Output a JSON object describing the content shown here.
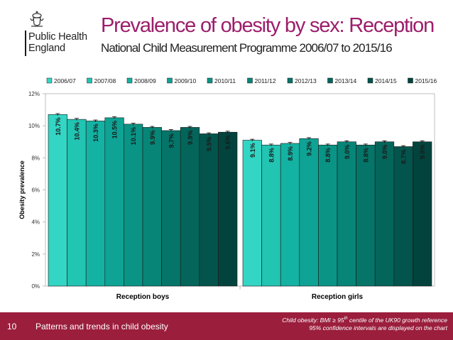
{
  "logo": {
    "line1": "Public Health",
    "line2": "England"
  },
  "title": "Prevalence of obesity by sex: Reception",
  "subtitle": "National Child Measurement Programme 2006/07 to 2015/16",
  "footer": {
    "page_number": "10",
    "title": "Patterns and trends in child obesity",
    "note_prefix": "Child obesity: BMI ≥ 95",
    "note_sup": "th",
    "note_suffix": " centile of the UK90 growth reference",
    "note_line2": "95% confidence intervals are displayed on the chart"
  },
  "chart_data": {
    "type": "bar",
    "categories": [
      "Reception boys",
      "Reception girls"
    ],
    "series": [
      {
        "name": "2006/07",
        "values": [
          10.7,
          9.1
        ],
        "labels": [
          "10.7%",
          "9.1%"
        ],
        "color": "#33d6c4"
      },
      {
        "name": "2007/08",
        "values": [
          10.4,
          8.8
        ],
        "labels": [
          "10.4%",
          "8.8%"
        ],
        "color": "#22c4b2"
      },
      {
        "name": "2008/09",
        "values": [
          10.3,
          8.9
        ],
        "labels": [
          "10.3%",
          "8.9%"
        ],
        "color": "#14b2a2"
      },
      {
        "name": "2009/10",
        "values": [
          10.5,
          9.2
        ],
        "labels": [
          "10.5%",
          "9.2%"
        ],
        "color": "#0ea394"
      },
      {
        "name": "2010/11",
        "values": [
          10.1,
          8.8
        ],
        "labels": [
          "10.1%",
          "8.8%"
        ],
        "color": "#0a9485"
      },
      {
        "name": "2011/12",
        "values": [
          9.9,
          9.0
        ],
        "labels": [
          "9.9%",
          "9.0%"
        ],
        "color": "#078577"
      },
      {
        "name": "2012/13",
        "values": [
          9.7,
          8.8
        ],
        "labels": [
          "9.7%",
          "8.8%"
        ],
        "color": "#057569"
      },
      {
        "name": "2013/14",
        "values": [
          9.9,
          9.0
        ],
        "labels": [
          "9.9%",
          "9.0%"
        ],
        "color": "#04655b"
      },
      {
        "name": "2014/15",
        "values": [
          9.5,
          8.7
        ],
        "labels": [
          "9.5%",
          "8.7%"
        ],
        "color": "#03544c"
      },
      {
        "name": "2015/16",
        "values": [
          9.6,
          9.0
        ],
        "labels": [
          "9.6%",
          "9.0%"
        ],
        "color": "#02443d"
      }
    ],
    "ylabel": "Obesity prevalence",
    "xlabel": "",
    "ylim": [
      0,
      12
    ],
    "yticks": [
      0,
      2,
      4,
      6,
      8,
      10,
      12
    ],
    "ytick_labels": [
      "0%",
      "2%",
      "4%",
      "6%",
      "8%",
      "10%",
      "12%"
    ],
    "legend_position": "top",
    "grid": false,
    "error_bars": true
  }
}
